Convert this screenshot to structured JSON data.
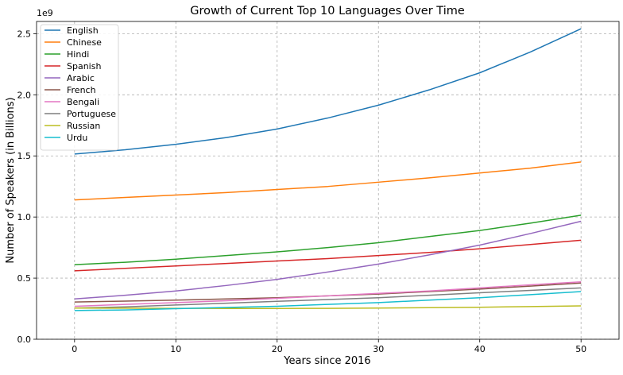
{
  "chart_data": {
    "type": "line",
    "title": "Growth of Current Top 10 Languages Over Time",
    "xlabel": "Years since 2016",
    "ylabel": "Number of Speakers (in Billions)",
    "y_offset_label": "1e9",
    "xlim": [
      -3.75,
      53.75
    ],
    "ylim": [
      0,
      2600000000.0
    ],
    "x_ticks": [
      0,
      10,
      20,
      30,
      40,
      50
    ],
    "x_tick_labels": [
      "0",
      "10",
      "20",
      "30",
      "40",
      "50"
    ],
    "y_ticks": [
      0,
      500000000.0,
      1000000000.0,
      1500000000.0,
      2000000000.0,
      2500000000.0
    ],
    "y_tick_labels": [
      "0.0",
      "0.5",
      "1.0",
      "1.5",
      "2.0",
      "2.5"
    ],
    "grid": true,
    "legend_position": "top-left",
    "x": [
      0,
      5,
      10,
      15,
      20,
      25,
      30,
      35,
      40,
      45,
      50
    ],
    "series": [
      {
        "name": "English",
        "color": "#1f77b4",
        "values": [
          1515000000.0,
          1550000000.0,
          1595000000.0,
          1650000000.0,
          1720000000.0,
          1810000000.0,
          1915000000.0,
          2040000000.0,
          2180000000.0,
          2350000000.0,
          2540000000.0
        ]
      },
      {
        "name": "Chinese",
        "color": "#ff7f0e",
        "values": [
          1140000000.0,
          1160000000.0,
          1180000000.0,
          1200000000.0,
          1225000000.0,
          1250000000.0,
          1285000000.0,
          1320000000.0,
          1360000000.0,
          1400000000.0,
          1450000000.0
        ]
      },
      {
        "name": "Hindi",
        "color": "#2ca02c",
        "values": [
          610000000.0,
          630000000.0,
          655000000.0,
          685000000.0,
          715000000.0,
          750000000.0,
          790000000.0,
          840000000.0,
          890000000.0,
          950000000.0,
          1015000000.0
        ]
      },
      {
        "name": "Spanish",
        "color": "#d62728",
        "values": [
          560000000.0,
          580000000.0,
          600000000.0,
          620000000.0,
          640000000.0,
          660000000.0,
          685000000.0,
          710000000.0,
          740000000.0,
          775000000.0,
          810000000.0
        ]
      },
      {
        "name": "Arabic",
        "color": "#9467bd",
        "values": [
          330000000.0,
          360000000.0,
          395000000.0,
          440000000.0,
          490000000.0,
          550000000.0,
          615000000.0,
          690000000.0,
          770000000.0,
          865000000.0,
          965000000.0
        ]
      },
      {
        "name": "French",
        "color": "#8c564b",
        "values": [
          305000000.0,
          312000000.0,
          320000000.0,
          330000000.0,
          340000000.0,
          355000000.0,
          370000000.0,
          390000000.0,
          410000000.0,
          435000000.0,
          460000000.0
        ]
      },
      {
        "name": "Bengali",
        "color": "#e377c2",
        "values": [
          270000000.0,
          285000000.0,
          300000000.0,
          315000000.0,
          335000000.0,
          355000000.0,
          375000000.0,
          395000000.0,
          420000000.0,
          445000000.0,
          470000000.0
        ]
      },
      {
        "name": "Portuguese",
        "color": "#7f7f7f",
        "values": [
          255000000.0,
          265000000.0,
          280000000.0,
          295000000.0,
          310000000.0,
          325000000.0,
          340000000.0,
          360000000.0,
          380000000.0,
          400000000.0,
          420000000.0
        ]
      },
      {
        "name": "Russian",
        "color": "#bcbd22",
        "values": [
          255000000.0,
          254000000.0,
          253000000.0,
          252000000.0,
          252000000.0,
          253000000.0,
          255000000.0,
          258000000.0,
          262000000.0,
          267000000.0,
          273000000.0
        ]
      },
      {
        "name": "Urdu",
        "color": "#17becf",
        "values": [
          235000000.0,
          240000000.0,
          250000000.0,
          260000000.0,
          270000000.0,
          285000000.0,
          300000000.0,
          320000000.0,
          340000000.0,
          365000000.0,
          390000000.0
        ]
      }
    ]
  }
}
